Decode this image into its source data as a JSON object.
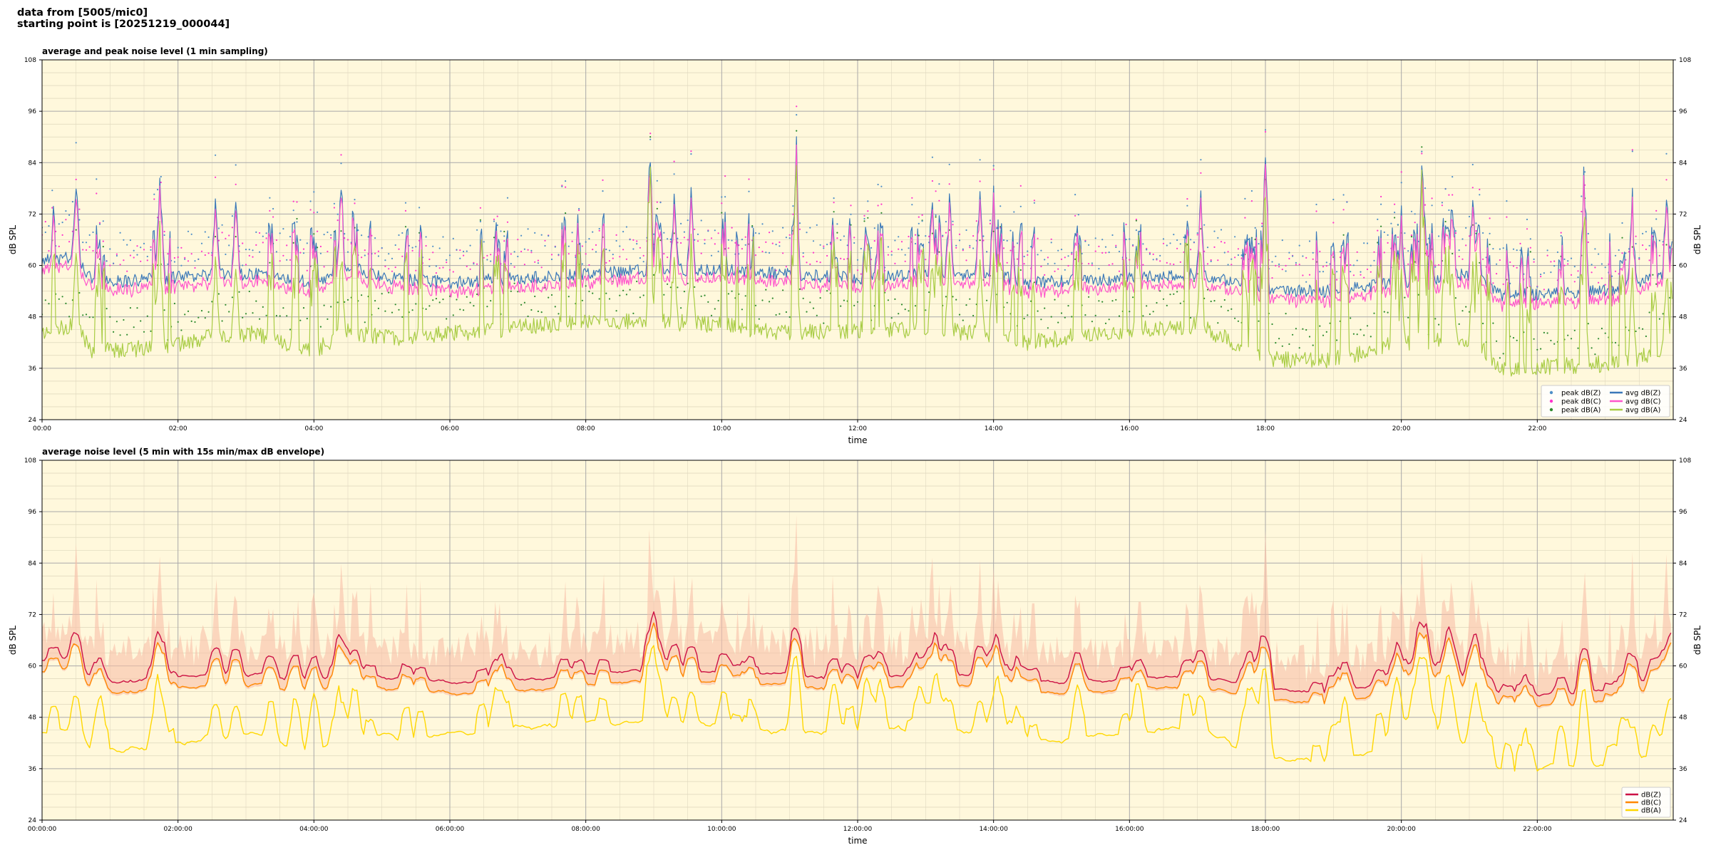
{
  "header": {
    "line1": "data from [5005/mic0]",
    "line2": "starting point is [20251219_000044]"
  },
  "chart_data": [
    {
      "type": "line",
      "title": "average and peak noise level (1 min sampling)",
      "xlabel": "time",
      "ylabel": "dB SPL",
      "ylim": [
        24,
        108
      ],
      "yticks": [
        24,
        36,
        48,
        60,
        72,
        84,
        96,
        108
      ],
      "xlim_hours": [
        0,
        24
      ],
      "xtick_labels": [
        "00:00",
        "02:00",
        "04:00",
        "06:00",
        "08:00",
        "10:00",
        "12:00",
        "14:00",
        "16:00",
        "18:00",
        "20:00",
        "22:00"
      ],
      "grid": true,
      "background": "#fff8dc",
      "legend_position": "lower-right",
      "legend": [
        {
          "label": "peak dB(Z)",
          "kind": "marker",
          "color": "#4f8fc8"
        },
        {
          "label": "peak dB(C)",
          "kind": "marker",
          "color": "#ff33cc"
        },
        {
          "label": "peak dB(A)",
          "kind": "marker",
          "color": "#2e8b2e"
        },
        {
          "label": "avg dB(Z)",
          "kind": "line",
          "color": "#3a78b8"
        },
        {
          "label": "avg dB(C)",
          "kind": "line",
          "color": "#ff55cc"
        },
        {
          "label": "avg dB(A)",
          "kind": "line",
          "color": "#a8cc44"
        }
      ],
      "baseline": {
        "hours": [
          0,
          0.5,
          0.75,
          1.8,
          2.6,
          3.2,
          4.0,
          4.5,
          5.0,
          6.0,
          8.0,
          9.0,
          10.0,
          11.0,
          12.0,
          13.0,
          14.0,
          14.5,
          16.0,
          17.0,
          18.1,
          19.0,
          20.0,
          21.0,
          21.5,
          23.0,
          24.0
        ],
        "z": [
          61,
          62,
          56,
          57,
          58,
          58,
          56,
          60,
          57,
          56,
          58,
          59,
          59,
          58,
          57,
          58,
          58,
          56,
          57,
          58,
          54,
          54,
          56,
          58,
          53,
          54,
          58
        ],
        "a": [
          44,
          46,
          40,
          41,
          44,
          44,
          40,
          45,
          43,
          44,
          47,
          47,
          46,
          44,
          45,
          45,
          44,
          42,
          45,
          46,
          38,
          38,
          42,
          43,
          36,
          37,
          40
        ]
      },
      "spikes_hours": [
        0.5,
        1.75,
        2.55,
        2.85,
        4.4,
        8.95,
        9.3,
        9.55,
        11.1,
        13.1,
        13.35,
        13.8,
        14.0,
        17.05,
        18.0,
        20.0,
        20.3,
        20.75,
        21.05,
        22.7,
        23.4,
        23.9
      ]
    },
    {
      "type": "line",
      "title": "average noise level (5 min with 15s min/max dB envelope)",
      "xlabel": "time",
      "ylabel": "dB SPL",
      "ylim": [
        24,
        108
      ],
      "yticks": [
        24,
        36,
        48,
        60,
        72,
        84,
        96,
        108
      ],
      "xlim_hours": [
        0,
        24
      ],
      "xtick_labels": [
        "00:00:00",
        "02:00:00",
        "04:00:00",
        "06:00:00",
        "08:00:00",
        "10:00:00",
        "12:00:00",
        "14:00:00",
        "16:00:00",
        "18:00:00",
        "20:00:00",
        "22:00:00"
      ],
      "grid": true,
      "background": "#fff8dc",
      "legend_position": "lower-right",
      "legend": [
        {
          "label": "dB(Z)",
          "kind": "line",
          "color": "#cc1144"
        },
        {
          "label": "dB(C)",
          "kind": "line",
          "color": "#ff8800"
        },
        {
          "label": "dB(A)",
          "kind": "line",
          "color": "#ffd700"
        }
      ],
      "envelope_color": "#f9c0a8"
    }
  ]
}
